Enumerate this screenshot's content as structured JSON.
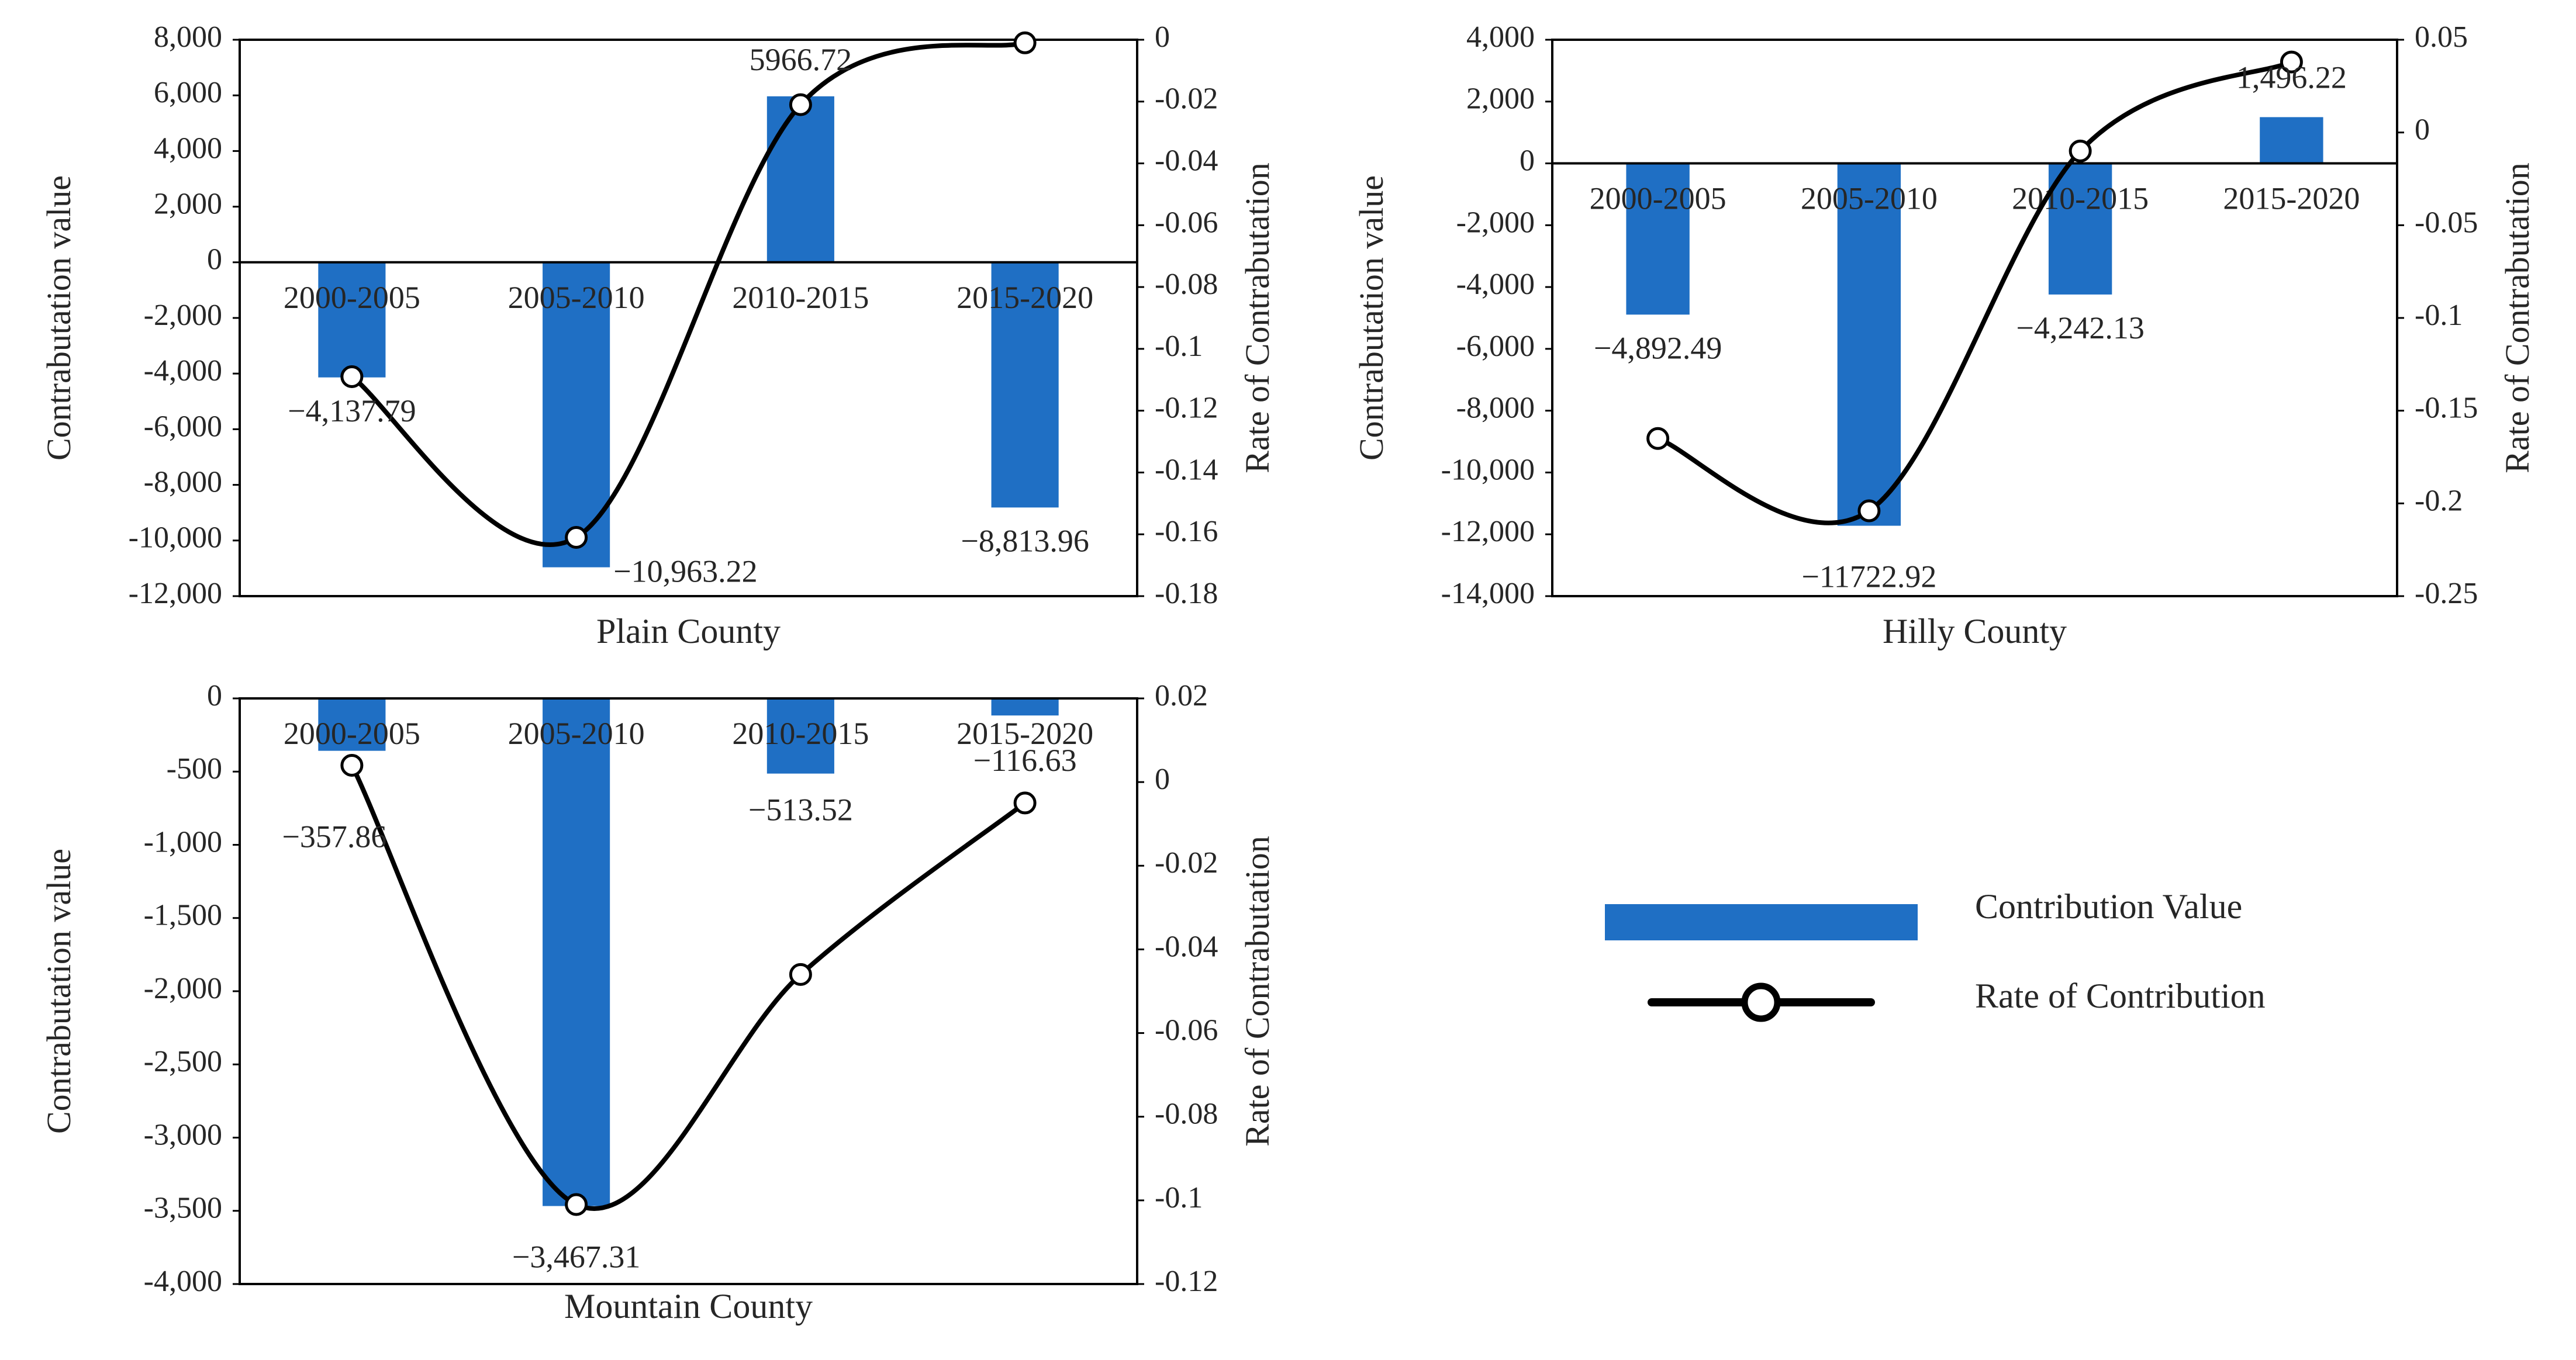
{
  "colors": {
    "bar": "#1f6fc4",
    "line": "#000000",
    "marker_fill": "#ffffff",
    "axis": "#000000"
  },
  "chart_data": [
    {
      "type": "bar+line",
      "title": "Plain County",
      "ylabel": "Contrabutation  value",
      "y2label": "Rate  of  Contrabutation",
      "categories": [
        "2000-2005",
        "2005-2010",
        "2010-2015",
        "2015-2020"
      ],
      "ylim": [
        -12000,
        8000
      ],
      "yticks": [
        8000,
        6000,
        4000,
        2000,
        0,
        -2000,
        -4000,
        -6000,
        -8000,
        -10000,
        -12000
      ],
      "ytick_labels": [
        "8,000",
        "6,000",
        "4,000",
        "2,000",
        "0",
        "-2,000",
        "-4,000",
        "-6,000",
        "-8,000",
        "-10,000",
        "-12,000"
      ],
      "y2lim": [
        -0.18,
        0
      ],
      "y2ticks": [
        0,
        -0.02,
        -0.04,
        -0.06,
        -0.08,
        -0.1,
        -0.12,
        -0.14,
        -0.16,
        -0.18
      ],
      "y2tick_labels": [
        "0",
        "-0.02",
        "-0.04",
        "-0.06",
        "-0.08",
        "-0.1",
        "-0.12",
        "-0.14",
        "-0.16",
        "-0.18"
      ],
      "series": [
        {
          "name": "Contribution Value",
          "kind": "bar",
          "values": [
            -4137.79,
            -10963.22,
            5966.72,
            -8813.96
          ],
          "labels": [
            "−4,137.79",
            "−10,963.22",
            "5966.72",
            "−8,813.96"
          ]
        },
        {
          "name": "Rate of Contribution",
          "kind": "line",
          "values": [
            -0.109,
            -0.161,
            -0.021,
            -0.001
          ]
        }
      ]
    },
    {
      "type": "bar+line",
      "title": "Hilly County",
      "ylabel": "Contrabutation  value",
      "y2label": "Rate  of  Contrabutation",
      "categories": [
        "2000-2005",
        "2005-2010",
        "2010-2015",
        "2015-2020"
      ],
      "ylim": [
        -14000,
        4000
      ],
      "yticks": [
        4000,
        2000,
        0,
        -2000,
        -4000,
        -6000,
        -8000,
        -10000,
        -12000,
        -14000
      ],
      "ytick_labels": [
        "4,000",
        "2,000",
        "0",
        "-2,000",
        "-4,000",
        "-6,000",
        "-8,000",
        "-10,000",
        "-12,000",
        "-14,000"
      ],
      "y2lim": [
        -0.25,
        0.05
      ],
      "y2ticks": [
        0.05,
        0,
        -0.05,
        -0.1,
        -0.15,
        -0.2,
        -0.25
      ],
      "y2tick_labels": [
        "0.05",
        "0",
        "-0.05",
        "-0.1",
        "-0.15",
        "-0.2",
        "-0.25"
      ],
      "series": [
        {
          "name": "Contribution Value",
          "kind": "bar",
          "values": [
            -4892.49,
            -11722.92,
            -4242.13,
            1496.22
          ],
          "labels": [
            "−4,892.49",
            "−11722.92",
            "−4,242.13",
            "1,496.22"
          ]
        },
        {
          "name": "Rate of Contribution",
          "kind": "line",
          "values": [
            -0.165,
            -0.204,
            -0.01,
            0.038
          ]
        }
      ]
    },
    {
      "type": "bar+line",
      "title": "Mountain County",
      "ylabel": "Contrabutation  value",
      "y2label": "Rate  of  Contrabutation",
      "categories": [
        "2000-2005",
        "2005-2010",
        "2010-2015",
        "2015-2020"
      ],
      "ylim": [
        -4000,
        0
      ],
      "yticks": [
        0,
        -500,
        -1000,
        -1500,
        -2000,
        -2500,
        -3000,
        -3500,
        -4000
      ],
      "ytick_labels": [
        "0",
        "-500",
        "-1,000",
        "-1,500",
        "-2,000",
        "-2,500",
        "-3,000",
        "-3,500",
        "-4,000"
      ],
      "y2lim": [
        -0.12,
        0.02
      ],
      "y2ticks": [
        0.02,
        0,
        -0.02,
        -0.04,
        -0.06,
        -0.08,
        -0.1,
        -0.12
      ],
      "y2tick_labels": [
        "0.02",
        "0",
        "-0.02",
        "-0.04",
        "-0.06",
        "-0.08",
        "-0.1",
        "-0.12"
      ],
      "series": [
        {
          "name": "Contribution Value",
          "kind": "bar",
          "values": [
            -357.86,
            -3467.31,
            -513.52,
            -116.63
          ],
          "labels": [
            "−357.86",
            "−3,467.31",
            "−513.52",
            "−116.63"
          ]
        },
        {
          "name": "Rate of Contribution",
          "kind": "line",
          "values": [
            0.004,
            -0.101,
            -0.046,
            -0.005
          ]
        }
      ]
    }
  ],
  "legend": {
    "bar_label": "Contribution Value",
    "line_label": "Rate of Contribution"
  }
}
